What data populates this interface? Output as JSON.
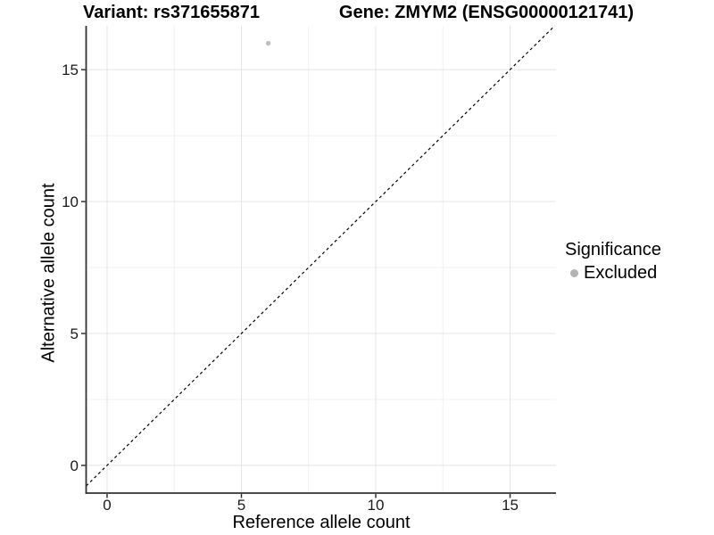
{
  "chart_data": {
    "type": "scatter",
    "title_left": "Variant: rs371655871",
    "title_right": "Gene: ZMYM2 (ENSG00000121741)",
    "xlabel": "Reference allele count",
    "ylabel": "Alternative allele count",
    "x_ticks": [
      0,
      5,
      10,
      15
    ],
    "y_ticks": [
      0,
      5,
      10,
      15
    ],
    "minor_tick_step": 2.5,
    "xlim": [
      -0.78,
      16.71
    ],
    "ylim": [
      -1.05,
      16.66
    ],
    "grid": "major+minor",
    "points": [
      {
        "x": 6,
        "y": 16,
        "series": "Excluded"
      }
    ],
    "identity_line": {
      "shown": true,
      "equation": "y = x",
      "style": "dashed"
    },
    "legend": {
      "title": "Significance",
      "position": "right",
      "items": [
        {
          "label": "Excluded",
          "color": "#b4b4b4"
        }
      ]
    },
    "colors": {
      "point": "#bebebe",
      "grid_major": "#e4e4e4",
      "grid_minor": "#f1f1f1",
      "axis_line": "#333333",
      "tick_mark": "#333333",
      "tick_label": "#1a1a1a",
      "identity_line": "#000000",
      "background": "#ffffff"
    }
  }
}
